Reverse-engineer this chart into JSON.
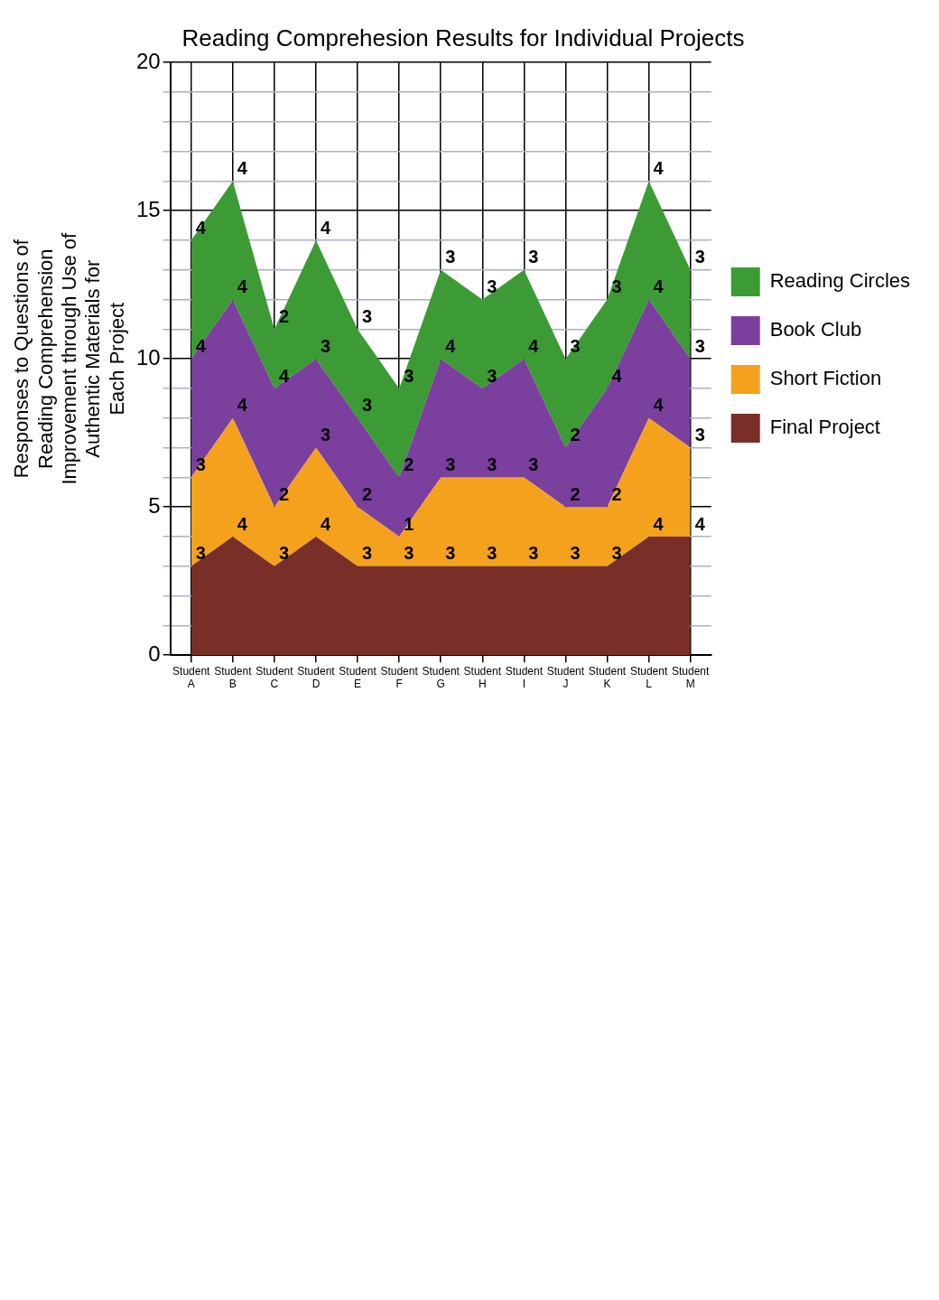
{
  "chart_data": {
    "type": "area",
    "title": "Reading Comprehesion Results for Individual Projects",
    "ylabel": "Responses to Questions of Reading Comprehension Improvement through Use of Authentic Materials for Each Project",
    "categories": [
      "Student A",
      "Student B",
      "Student C",
      "Student D",
      "Student E",
      "Student F",
      "Student G",
      "Student H",
      "Student I",
      "Student J",
      "Student K",
      "Student L",
      "Student M"
    ],
    "stacked": true,
    "series": [
      {
        "name": "Final Project",
        "color": "#7a2e28",
        "values": [
          3,
          4,
          3,
          4,
          3,
          3,
          3,
          3,
          3,
          3,
          3,
          4,
          4
        ]
      },
      {
        "name": "Short Fiction",
        "color": "#f4a21e",
        "values": [
          3,
          4,
          2,
          3,
          2,
          1,
          3,
          3,
          3,
          2,
          2,
          4,
          3
        ]
      },
      {
        "name": "Book Club",
        "color": "#7b3f9e",
        "values": [
          4,
          4,
          4,
          3,
          3,
          2,
          4,
          3,
          4,
          2,
          4,
          4,
          3
        ]
      },
      {
        "name": "Reading Circles",
        "color": "#3d9b35",
        "values": [
          4,
          4,
          2,
          4,
          3,
          3,
          3,
          3,
          3,
          3,
          3,
          4,
          3
        ]
      }
    ],
    "ylim": [
      0,
      20
    ],
    "yticks": [
      0,
      {
        "value": 1,
        "label": null
      },
      {
        "value": 2,
        "label": null
      },
      {
        "value": 3,
        "label": null
      },
      {
        "value": 4,
        "label": null
      },
      5,
      {
        "value": 6,
        "label": null
      },
      {
        "value": 7,
        "label": null
      },
      {
        "value": 8,
        "label": null
      },
      {
        "value": 9,
        "label": null
      },
      10,
      {
        "value": 11,
        "label": null
      },
      {
        "value": 12,
        "label": null
      },
      {
        "value": 13,
        "label": null
      },
      {
        "value": 14,
        "label": null
      },
      15,
      {
        "value": 16,
        "label": null
      },
      {
        "value": 17,
        "label": null
      },
      {
        "value": 18,
        "label": null
      },
      {
        "value": 19,
        "label": null
      },
      20
    ],
    "grid": true,
    "legend": "right",
    "marker": "none",
    "data_labels": true
  }
}
